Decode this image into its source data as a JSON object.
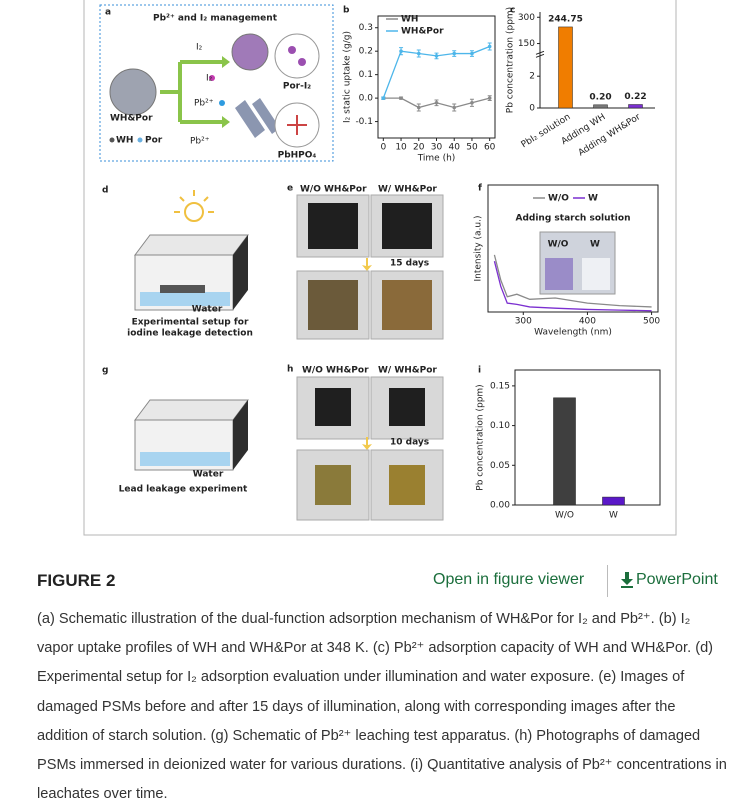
{
  "figure": {
    "panel_labels": [
      "a",
      "b",
      "c",
      "d",
      "e",
      "f",
      "g",
      "h",
      "i"
    ],
    "a": {
      "title": "Pb²⁺ and I₂ management",
      "i2_top": "I₂",
      "i2_mid": "I₂",
      "pb_mid": "Pb²⁺",
      "pb_low": "Pb²⁺",
      "material": "WH&Por",
      "legend_wh": "WH",
      "legend_por": "Por",
      "product_top": "Por-I₂",
      "product_low": "PbHPO₄"
    },
    "d": {
      "water": "Water",
      "caption_lines": [
        "Experimental setup for",
        "iodine leakage detection"
      ]
    },
    "e": {
      "left": "W/O WH&Por",
      "right": "W/ WH&Por",
      "duration": "15 days"
    },
    "g": {
      "water": "Water",
      "caption": "Lead leakage experiment"
    },
    "h": {
      "left": "W/O WH&Por",
      "right": "W/ WH&Por",
      "duration": "10 days"
    }
  },
  "chart_data": [
    {
      "type": "line",
      "ylabel": "I₂ static uptake (g/g)",
      "xlabel": "Time (h)",
      "x": [
        0,
        10,
        20,
        30,
        40,
        50,
        60
      ],
      "xlim": [
        -3,
        63
      ],
      "xticks": [
        0,
        10,
        20,
        30,
        40,
        50,
        60
      ],
      "ylim": [
        -0.17,
        0.35
      ],
      "yticks": [
        {
          "value": -0.1,
          "label": "-0.1"
        },
        {
          "value": 0,
          "label": "0.0"
        },
        0.1,
        0.2,
        0.3
      ],
      "legend": "upper left",
      "series": [
        {
          "name": "WH",
          "color": "#8a8a8a",
          "values": [
            0,
            0,
            -0.04,
            -0.02,
            -0.04,
            -0.02,
            0
          ],
          "errors": [
            0.005,
            0.005,
            0.015,
            0.012,
            0.015,
            0.015,
            0.01
          ]
        },
        {
          "name": "WH&Por",
          "color": "#4db6ea",
          "values": [
            0,
            0.2,
            0.19,
            0.18,
            0.19,
            0.19,
            0.22
          ],
          "errors": [
            0.005,
            0.015,
            0.015,
            0.012,
            0.012,
            0.012,
            0.015
          ]
        }
      ]
    },
    {
      "type": "bar",
      "ylabel": "Pb concentration (ppm)",
      "categories": [
        "PbI₂ solution",
        "Adding WH",
        "Adding WH&Por"
      ],
      "values": [
        244.75,
        0.2,
        0.22
      ],
      "value_labels": [
        "244.75",
        "0.20",
        "0.22"
      ],
      "colors": [
        "#f07d00",
        "#7a7a7a",
        "#7b2fd0"
      ],
      "ylim": [
        0,
        330
      ],
      "ybreak": [
        3,
        100
      ],
      "yticks": [
        0,
        2,
        150,
        300
      ]
    },
    {
      "type": "line",
      "ylabel": "Intensity (a.u.)",
      "xlabel": "Wavelength (nm)",
      "x": [
        255,
        265,
        275,
        290,
        310,
        350,
        400,
        450,
        500
      ],
      "xlim": [
        245,
        510
      ],
      "xticks": [
        300,
        400,
        500
      ],
      "ylim": [
        0,
        1
      ],
      "legend": "upper center",
      "annotation": "Adding starch solution",
      "inset_labels": [
        "W/O",
        "W"
      ],
      "series": [
        {
          "name": "W/O",
          "color": "#8a8a8a",
          "values": [
            0.45,
            0.25,
            0.12,
            0.14,
            0.1,
            0.11,
            0.07,
            0.05,
            0.04
          ]
        },
        {
          "name": "W",
          "color": "#7b2fd0",
          "values": [
            0.4,
            0.2,
            0.07,
            0.06,
            0.04,
            0.03,
            0.02,
            0.015,
            0.01
          ]
        }
      ]
    },
    {
      "type": "bar",
      "ylabel": "Pb concentration (ppm)",
      "categories": [
        "W/O",
        "W"
      ],
      "values": [
        0.135,
        0.01
      ],
      "colors": [
        "#3f3f3f",
        "#5a18c8"
      ],
      "ylim": [
        0,
        0.17
      ],
      "yticks": [
        {
          "value": 0,
          "label": "0.00"
        },
        {
          "value": 0.05,
          "label": "0.05"
        },
        {
          "value": 0.1,
          "label": "0.10"
        },
        {
          "value": 0.15,
          "label": "0.15"
        }
      ]
    }
  ],
  "header": {
    "title": "FIGURE 2",
    "viewer": "Open in figure viewer",
    "powerpoint": "PowerPoint"
  },
  "caption": "(a) Schematic illustration of the dual-function adsorption mechanism of WH&Por for I₂ and Pb²⁺. (b) I₂ vapor uptake profiles of WH and WH&Por at 348 K. (c) Pb²⁺ adsorption capacity of WH and WH&Por. (d) Experimental setup for I₂ adsorption evaluation under illumination and water exposure. (e) Images of damaged PSMs before and after 15 days of illumination, along with corresponding images after the addition of starch solution. (g) Schematic of Pb²⁺ leaching test apparatus. (h) Photographs of damaged PSMs immersed in deionized water for various durations. (i) Quantitative analysis of Pb²⁺ concentrations in leachates over time."
}
